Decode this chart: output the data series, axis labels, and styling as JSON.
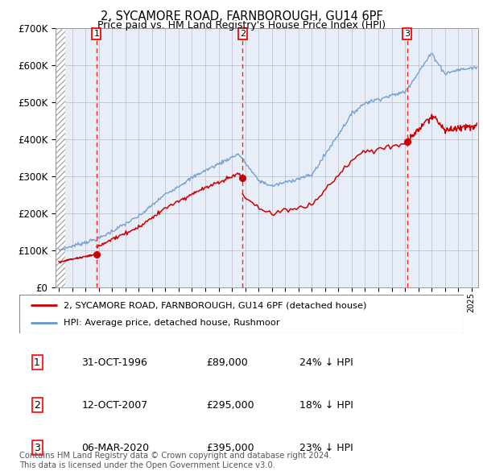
{
  "title": "2, SYCAMORE ROAD, FARNBOROUGH, GU14 6PF",
  "subtitle": "Price paid vs. HM Land Registry's House Price Index (HPI)",
  "sale_prices": [
    89000,
    295000,
    395000
  ],
  "sale_labels": [
    "1",
    "2",
    "3"
  ],
  "sale_display": [
    "31-OCT-1996",
    "12-OCT-2007",
    "06-MAR-2020"
  ],
  "sale_prices_display": [
    "£89,000",
    "£295,000",
    "£395,000"
  ],
  "sale_hpi_text": [
    "24% ↓ HPI",
    "18% ↓ HPI",
    "23% ↓ HPI"
  ],
  "legend_property": "2, SYCAMORE ROAD, FARNBOROUGH, GU14 6PF (detached house)",
  "legend_hpi": "HPI: Average price, detached house, Rushmoor",
  "footer": "Contains HM Land Registry data © Crown copyright and database right 2024.\nThis data is licensed under the Open Government Licence v3.0.",
  "property_color": "#cc0000",
  "hpi_color": "#6699cc",
  "background_color": "#e8eef8",
  "ylim": [
    0,
    700000
  ],
  "xlim_start": 1993.75,
  "xlim_end": 2025.5,
  "grid_color": "#bbbbcc",
  "vline_color": "#ff2222",
  "t1": 1996.833,
  "t2": 2007.792,
  "t3": 2020.167
}
